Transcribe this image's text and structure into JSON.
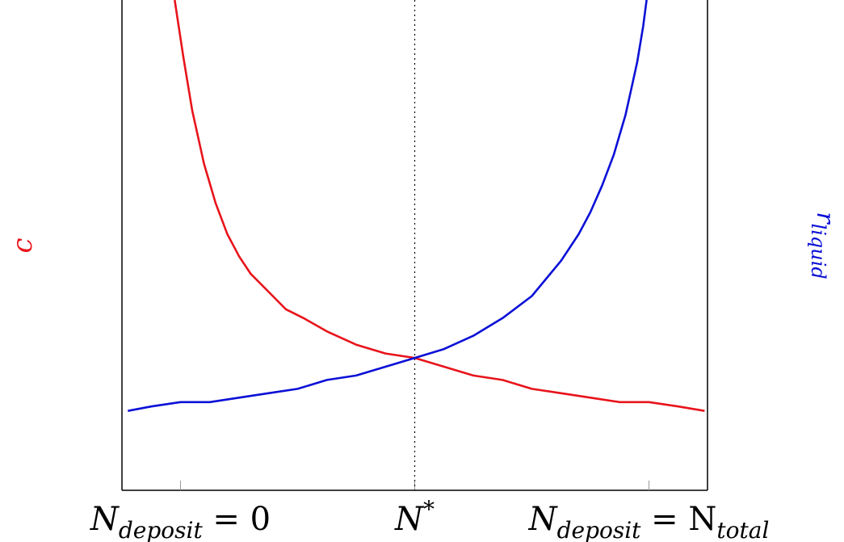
{
  "chart_data": {
    "type": "line",
    "title": "",
    "xlim": [
      0,
      1
    ],
    "ylim": [
      0,
      1
    ],
    "series": [
      {
        "name": "c",
        "color": "#e8141b",
        "x": [
          0.09,
          0.105,
          0.12,
          0.14,
          0.16,
          0.18,
          0.2,
          0.22,
          0.25,
          0.28,
          0.31,
          0.35,
          0.4,
          0.45,
          0.5,
          0.55,
          0.6,
          0.65,
          0.7,
          0.75,
          0.8,
          0.85,
          0.9,
          0.95,
          0.995
        ],
        "y": [
          1.0,
          0.87,
          0.75,
          0.63,
          0.54,
          0.47,
          0.42,
          0.38,
          0.34,
          0.3,
          0.28,
          0.25,
          0.22,
          0.2,
          0.19,
          0.17,
          0.15,
          0.14,
          0.12,
          0.11,
          0.1,
          0.09,
          0.09,
          0.08,
          0.07
        ]
      },
      {
        "name": "r_liquid",
        "color": "#0b10d6",
        "x": [
          0.01,
          0.05,
          0.1,
          0.15,
          0.2,
          0.25,
          0.3,
          0.35,
          0.4,
          0.45,
          0.5,
          0.55,
          0.6,
          0.65,
          0.7,
          0.75,
          0.78,
          0.8,
          0.82,
          0.84,
          0.86,
          0.87,
          0.88,
          0.89,
          0.896
        ],
        "y": [
          0.07,
          0.08,
          0.09,
          0.09,
          0.1,
          0.11,
          0.12,
          0.14,
          0.15,
          0.17,
          0.19,
          0.21,
          0.24,
          0.28,
          0.33,
          0.41,
          0.47,
          0.52,
          0.58,
          0.65,
          0.74,
          0.8,
          0.86,
          0.94,
          1.0
        ]
      }
    ],
    "x_ticks": [
      {
        "value": 0.1,
        "label_main": "N",
        "label_sub": "deposit",
        "label_suffix": " = 0"
      },
      {
        "value": 0.5,
        "label_main": "N",
        "label_sup": "*"
      },
      {
        "value": 0.9,
        "label_main": "N",
        "label_sub": "deposit",
        "label_mid": " = N",
        "label_sub2": "total"
      }
    ],
    "marker_line": {
      "x": 0.5,
      "style": "dotted"
    },
    "y_left_label": "c",
    "y_left_color": "#e8141b",
    "y_right_label": "r",
    "y_right_sub": "liquid",
    "y_right_color": "#0b10d6",
    "grid": false,
    "legend": "none"
  }
}
